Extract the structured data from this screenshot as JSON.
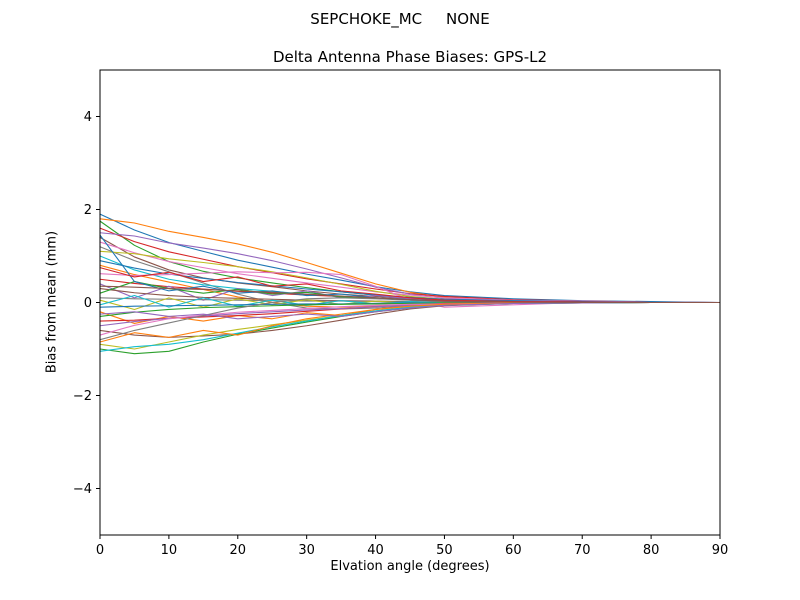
{
  "figure": {
    "suptitle": "SEPCHOKE_MC     NONE",
    "title": "Delta Antenna Phase Biases: GPS-L2",
    "xlabel": "Elvation angle (degrees)",
    "ylabel": "Bias from mean (mm)"
  },
  "chart_data": {
    "type": "line",
    "suptitle": "SEPCHOKE_MC     NONE",
    "title": "Delta Antenna Phase Biases: GPS-L2",
    "xlabel": "Elvation angle (degrees)",
    "ylabel": "Bias from mean (mm)",
    "xlim": [
      0,
      90
    ],
    "ylim": [
      -5,
      5
    ],
    "xticks": [
      0,
      10,
      20,
      30,
      40,
      50,
      60,
      70,
      80,
      90
    ],
    "yticks": [
      -4,
      -2,
      0,
      2,
      4
    ],
    "grid": false,
    "legend": "none",
    "palette": [
      "#1f77b4",
      "#ff7f0e",
      "#2ca02c",
      "#d62728",
      "#9467bd",
      "#8c564b",
      "#e377c2",
      "#7f7f7f",
      "#bcbd22",
      "#17becf"
    ],
    "x": [
      0,
      5,
      10,
      15,
      20,
      25,
      30,
      35,
      40,
      45,
      50,
      60,
      70,
      80,
      90
    ],
    "series": [
      {
        "color": "#1f77b4",
        "values": [
          1.9,
          1.56,
          1.29,
          1.1,
          0.91,
          0.76,
          0.61,
          0.48,
          0.34,
          0.23,
          0.15,
          0.08,
          0.04,
          0.02,
          0.0
        ]
      },
      {
        "color": "#ff7f0e",
        "values": [
          1.8,
          1.71,
          1.53,
          1.4,
          1.26,
          1.08,
          0.86,
          0.63,
          0.4,
          0.22,
          0.11,
          0.04,
          0.02,
          0.0,
          0.0
        ]
      },
      {
        "color": "#2ca02c",
        "values": [
          1.75,
          1.23,
          0.88,
          0.67,
          0.53,
          0.42,
          0.32,
          0.23,
          0.16,
          0.11,
          0.07,
          0.04,
          0.02,
          0.0,
          0.0
        ]
      },
      {
        "color": "#d62728",
        "values": [
          1.6,
          1.31,
          1.09,
          0.93,
          0.77,
          0.64,
          0.51,
          0.4,
          0.29,
          0.19,
          0.13,
          0.06,
          0.03,
          0.01,
          0.0
        ]
      },
      {
        "color": "#9467bd",
        "values": [
          1.5,
          1.43,
          1.28,
          1.17,
          1.05,
          0.9,
          0.72,
          0.53,
          0.33,
          0.18,
          0.09,
          0.03,
          0.01,
          0.0,
          0.0
        ]
      },
      {
        "color": "#8c564b",
        "values": [
          1.4,
          0.98,
          0.7,
          0.53,
          0.42,
          0.34,
          0.25,
          0.18,
          0.13,
          0.08,
          0.06,
          0.03,
          0.01,
          0.0,
          0.0
        ]
      },
      {
        "color": "#e377c2",
        "values": [
          1.3,
          1.07,
          0.88,
          0.75,
          0.62,
          0.52,
          0.42,
          0.33,
          0.23,
          0.16,
          0.1,
          0.05,
          0.03,
          0.01,
          0.0
        ]
      },
      {
        "color": "#7f7f7f",
        "values": [
          1.2,
          0.9,
          0.66,
          0.42,
          0.18,
          0.0,
          -0.12,
          -0.14,
          -0.12,
          -0.07,
          -0.04,
          -0.01,
          0.0,
          0.0,
          0.0
        ]
      },
      {
        "color": "#bcbd22",
        "values": [
          1.1,
          1.05,
          0.94,
          0.86,
          0.77,
          0.66,
          0.53,
          0.39,
          0.24,
          0.13,
          0.07,
          0.02,
          0.01,
          0.0,
          0.0
        ]
      },
      {
        "color": "#17becf",
        "values": [
          1.0,
          0.7,
          0.5,
          0.38,
          0.3,
          0.24,
          0.18,
          0.13,
          0.09,
          0.06,
          0.04,
          0.02,
          0.01,
          0.0,
          0.0
        ]
      },
      {
        "color": "#1f77b4",
        "values": [
          0.9,
          0.74,
          0.61,
          0.52,
          0.43,
          0.36,
          0.29,
          0.23,
          0.16,
          0.11,
          0.07,
          0.04,
          0.02,
          0.01,
          0.0
        ]
      },
      {
        "color": "#ff7f0e",
        "values": [
          0.8,
          0.6,
          0.44,
          0.28,
          0.12,
          0.0,
          -0.08,
          -0.1,
          -0.08,
          -0.05,
          -0.02,
          -0.01,
          0.0,
          0.0,
          0.0
        ]
      },
      {
        "color": "#e377c2",
        "values": [
          0.62,
          0.58,
          0.6,
          0.63,
          0.66,
          0.64,
          0.65,
          0.6,
          0.35,
          0.05,
          -0.1,
          -0.05,
          0.0,
          0.0,
          0.0
        ]
      },
      {
        "color": "#d62728",
        "values": [
          0.5,
          0.41,
          0.34,
          0.29,
          0.24,
          0.2,
          0.16,
          0.13,
          0.09,
          0.06,
          0.04,
          0.02,
          0.01,
          0.0,
          0.0
        ]
      },
      {
        "color": "#9467bd",
        "values": [
          0.4,
          0.1,
          0.35,
          0.05,
          0.3,
          0.15,
          0.25,
          0.1,
          0.15,
          0.08,
          0.05,
          0.02,
          0.01,
          0.0,
          0.0
        ]
      },
      {
        "color": "#8c564b",
        "values": [
          0.3,
          0.21,
          0.15,
          0.11,
          0.09,
          0.07,
          0.05,
          0.04,
          0.03,
          0.02,
          0.01,
          0.01,
          0.0,
          0.0,
          0.0
        ]
      },
      {
        "color": "#2ca02c",
        "values": [
          0.2,
          0.45,
          0.3,
          0.2,
          0.28,
          0.18,
          0.22,
          0.12,
          0.1,
          0.06,
          0.03,
          0.01,
          0.0,
          0.0,
          0.0
        ]
      },
      {
        "color": "#7f7f7f",
        "values": [
          0.1,
          0.08,
          0.07,
          0.06,
          0.05,
          0.04,
          0.03,
          0.03,
          0.02,
          0.01,
          0.01,
          0.0,
          0.0,
          0.0,
          0.0
        ]
      },
      {
        "color": "#bcbd22",
        "values": [
          0.05,
          -0.15,
          0.1,
          -0.1,
          0.08,
          -0.05,
          0.06,
          -0.04,
          0.03,
          -0.02,
          0.01,
          0.0,
          0.0,
          0.0,
          0.0
        ]
      },
      {
        "color": "#17becf",
        "values": [
          -0.05,
          0.15,
          -0.1,
          0.1,
          -0.08,
          0.05,
          -0.06,
          0.04,
          -0.03,
          0.02,
          -0.01,
          0.0,
          0.0,
          0.0,
          0.0
        ]
      },
      {
        "color": "#1f77b4",
        "values": [
          -0.1,
          -0.08,
          -0.07,
          -0.06,
          -0.05,
          -0.04,
          -0.03,
          -0.03,
          -0.02,
          -0.01,
          -0.01,
          0.0,
          0.0,
          0.0,
          0.0
        ]
      },
      {
        "color": "#ff7f0e",
        "values": [
          -0.2,
          -0.45,
          -0.3,
          -0.4,
          -0.28,
          -0.35,
          -0.22,
          -0.28,
          -0.15,
          -0.08,
          -0.04,
          -0.01,
          0.0,
          0.0,
          0.0
        ]
      },
      {
        "color": "#2ca02c",
        "values": [
          -0.3,
          -0.21,
          -0.15,
          -0.11,
          -0.09,
          -0.07,
          -0.05,
          -0.04,
          -0.03,
          -0.02,
          -0.01,
          -0.01,
          0.0,
          0.0,
          0.0
        ]
      },
      {
        "color": "#d62728",
        "values": [
          -0.4,
          -0.38,
          -0.34,
          -0.31,
          -0.28,
          -0.24,
          -0.19,
          -0.14,
          -0.09,
          -0.05,
          -0.02,
          -0.01,
          0.0,
          0.0,
          0.0
        ]
      },
      {
        "color": "#9467bd",
        "values": [
          -0.5,
          -0.41,
          -0.34,
          -0.29,
          -0.24,
          -0.2,
          -0.16,
          -0.13,
          -0.09,
          -0.06,
          -0.04,
          -0.02,
          -0.01,
          0.0,
          0.0
        ]
      },
      {
        "color": "#8c564b",
        "values": [
          -0.6,
          -0.7,
          -0.75,
          -0.72,
          -0.68,
          -0.6,
          -0.5,
          -0.38,
          -0.25,
          -0.14,
          -0.07,
          -0.02,
          -0.01,
          0.0,
          0.0
        ]
      },
      {
        "color": "#e377c2",
        "values": [
          -0.7,
          -0.49,
          -0.35,
          -0.27,
          -0.21,
          -0.17,
          -0.13,
          -0.09,
          -0.06,
          -0.04,
          -0.03,
          -0.01,
          -0.01,
          0.0,
          0.0
        ]
      },
      {
        "color": "#7f7f7f",
        "values": [
          -0.8,
          -0.6,
          -0.44,
          -0.28,
          -0.12,
          0.0,
          0.08,
          0.1,
          0.08,
          0.05,
          0.02,
          0.01,
          0.0,
          0.0,
          0.0
        ]
      },
      {
        "color": "#bcbd22",
        "values": [
          -0.9,
          -1.0,
          -0.85,
          -0.7,
          -0.58,
          -0.48,
          -0.38,
          -0.28,
          -0.18,
          -0.1,
          -0.05,
          -0.02,
          -0.01,
          0.0,
          0.0
        ]
      },
      {
        "color": "#2ca02c",
        "values": [
          -1.0,
          -1.1,
          -1.05,
          -0.85,
          -0.68,
          -0.55,
          -0.42,
          -0.3,
          -0.2,
          -0.12,
          -0.06,
          -0.02,
          -0.01,
          0.0,
          0.0
        ]
      },
      {
        "color": "#17becf",
        "values": [
          -1.05,
          -0.95,
          -0.9,
          -0.8,
          -0.66,
          -0.52,
          -0.4,
          -0.28,
          -0.18,
          -0.1,
          -0.05,
          -0.02,
          -0.01,
          0.0,
          0.0
        ]
      },
      {
        "color": "#1f77b4",
        "values": [
          1.45,
          0.45,
          0.25,
          0.35,
          0.2,
          0.25,
          0.15,
          0.18,
          0.1,
          0.06,
          0.03,
          0.01,
          0.0,
          0.0,
          0.0
        ]
      },
      {
        "color": "#ff7f0e",
        "values": [
          -0.85,
          -0.65,
          -0.75,
          -0.6,
          -0.7,
          -0.5,
          -0.35,
          -0.25,
          -0.15,
          -0.08,
          -0.04,
          -0.01,
          0.0,
          0.0,
          0.0
        ]
      },
      {
        "color": "#d62728",
        "values": [
          0.75,
          0.55,
          0.65,
          0.45,
          0.55,
          0.35,
          0.4,
          0.25,
          0.18,
          0.1,
          0.05,
          0.02,
          0.01,
          0.0,
          0.0
        ]
      },
      {
        "color": "#9467bd",
        "values": [
          -0.25,
          -0.2,
          -0.3,
          -0.25,
          -0.35,
          -0.3,
          -0.25,
          -0.3,
          -0.2,
          -0.12,
          -0.06,
          -0.02,
          -0.01,
          0.0,
          0.0
        ]
      },
      {
        "color": "#8c564b",
        "values": [
          0.35,
          0.33,
          0.3,
          0.28,
          0.25,
          0.22,
          0.18,
          0.14,
          0.1,
          0.06,
          0.03,
          0.01,
          0.0,
          0.0,
          0.0
        ]
      }
    ]
  }
}
